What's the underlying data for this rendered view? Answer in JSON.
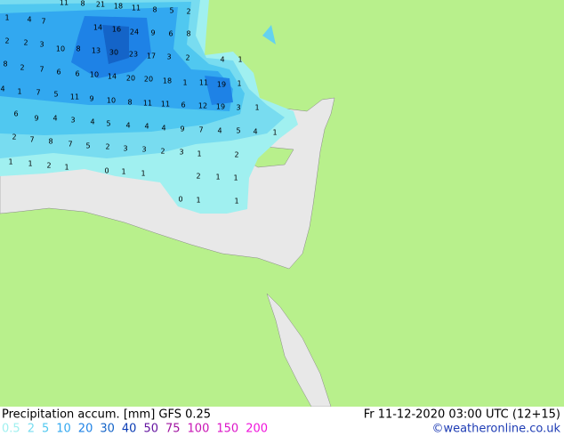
{
  "map_values": [
    "11",
    "8",
    "21",
    "18",
    "11",
    "8",
    "5",
    "2",
    "1",
    "4",
    "7",
    "14",
    "16",
    "24",
    "9",
    "6",
    "8",
    "2",
    "2",
    "3",
    "10",
    "8",
    "13",
    "30",
    "23",
    "17",
    "3",
    "2",
    "4",
    "1",
    "8",
    "2",
    "7",
    "6",
    "6",
    "10",
    "14",
    "20",
    "20",
    "18",
    "1",
    "11",
    "19",
    "1",
    "4",
    "1",
    "7",
    "5",
    "11",
    "9",
    "10",
    "8",
    "11",
    "11",
    "6",
    "12",
    "19",
    "3",
    "1",
    "6",
    "9",
    "4",
    "3",
    "4",
    "5",
    "4",
    "4",
    "4",
    "9",
    "7",
    "4",
    "5",
    "4",
    "1",
    "2",
    "7",
    "8",
    "7",
    "5",
    "2",
    "3",
    "3",
    "2",
    "3",
    "1",
    "2",
    "1",
    "1",
    "2",
    "1",
    "0",
    "1",
    "1",
    "2",
    "1",
    "1",
    "0",
    "1",
    "1"
  ],
  "footer": {
    "title": "Precipitation accum. [mm] GFS 0.25",
    "time": "Fr 11-12-2020 03:00 UTC (12+15)",
    "credit": "©weatheronline.co.uk"
  },
  "legend": [
    {
      "label": "0.5",
      "color": "#a0f0f0"
    },
    {
      "label": "2",
      "color": "#78dcf0"
    },
    {
      "label": "5",
      "color": "#50c8f0"
    },
    {
      "label": "10",
      "color": "#32a8f0"
    },
    {
      "label": "20",
      "color": "#1e82e6"
    },
    {
      "label": "30",
      "color": "#1464c8"
    },
    {
      "label": "40",
      "color": "#0a3cb4"
    },
    {
      "label": "50",
      "color": "#6414a0"
    },
    {
      "label": "75",
      "color": "#a014a0"
    },
    {
      "label": "100",
      "color": "#c814b4"
    },
    {
      "label": "150",
      "color": "#dc14c8"
    },
    {
      "label": "200",
      "color": "#f014dc"
    }
  ]
}
